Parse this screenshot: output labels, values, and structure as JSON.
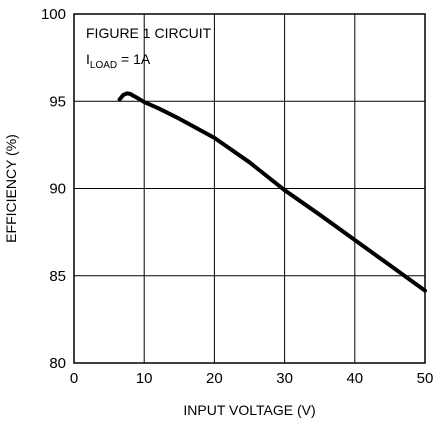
{
  "chart_data": {
    "type": "line",
    "title": "",
    "xlabel": "INPUT VOLTAGE (V)",
    "ylabel": "EFFICIENCY (%)",
    "xlim": [
      0,
      50
    ],
    "ylim": [
      80,
      100
    ],
    "x_ticks": [
      0,
      10,
      20,
      30,
      40,
      50
    ],
    "y_ticks": [
      80,
      85,
      90,
      95,
      100
    ],
    "x_tick_labels": [
      "0",
      "10",
      "20",
      "30",
      "40",
      "50"
    ],
    "y_tick_labels": [
      "80",
      "85",
      "90",
      "95",
      "100"
    ],
    "grid": true,
    "annotation": {
      "line1": "FIGURE 1 CIRCUIT",
      "line2_main": "I",
      "line2_sub": "LOAD",
      "line2_rest": " = 1A"
    },
    "series": [
      {
        "color": "#000000",
        "x": [
          6.5,
          7,
          7.5,
          8,
          8.5,
          9,
          10,
          12,
          15,
          20,
          25,
          30,
          35,
          40,
          45,
          50
        ],
        "y": [
          95.1,
          95.35,
          95.45,
          95.42,
          95.3,
          95.2,
          94.95,
          94.6,
          94.0,
          92.9,
          91.5,
          89.9,
          88.5,
          87.05,
          85.6,
          84.15
        ]
      }
    ]
  }
}
